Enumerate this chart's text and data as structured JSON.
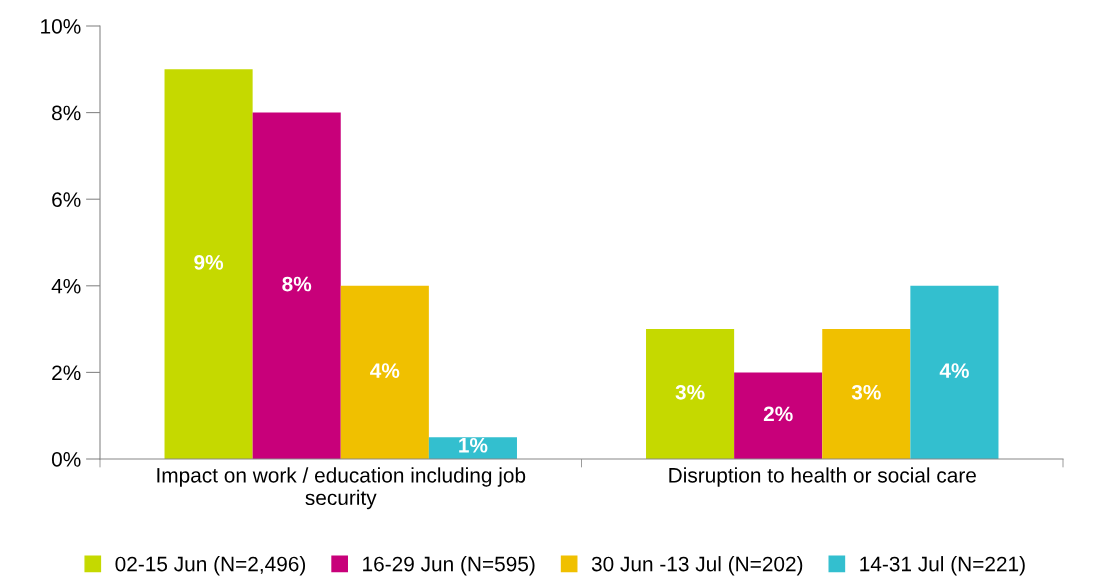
{
  "chart_data": {
    "type": "bar",
    "categories": [
      "Impact on work / education including job\nsecurity",
      "Disruption to health or social care"
    ],
    "series": [
      {
        "name": "02-15 Jun (N=2,496)",
        "color": "#c5d900",
        "values": [
          9,
          3
        ],
        "value_labels": [
          "9%",
          "3%"
        ]
      },
      {
        "name": "16-29 Jun (N=595)",
        "color": "#c8007a",
        "values": [
          8,
          2
        ],
        "value_labels": [
          "8%",
          "2%"
        ]
      },
      {
        "name": "30 Jun -13 Jul (N=202)",
        "color": "#f0c000",
        "values": [
          4,
          3
        ],
        "value_labels": [
          "4%",
          "3%"
        ]
      },
      {
        "name": "14-31 Jul (N=221)",
        "color": "#33bfcf",
        "values": [
          0.5,
          4
        ],
        "value_labels": [
          "1%",
          "4%"
        ]
      }
    ],
    "ylim": [
      0,
      10
    ],
    "yticks": [
      {
        "value": 0,
        "label": "0%"
      },
      {
        "value": 2,
        "label": "2%"
      },
      {
        "value": 4,
        "label": "4%"
      },
      {
        "value": 6,
        "label": "6%"
      },
      {
        "value": 8,
        "label": "8%"
      },
      {
        "value": 10,
        "label": "10%"
      }
    ],
    "grid": false,
    "legend": "bottom"
  }
}
